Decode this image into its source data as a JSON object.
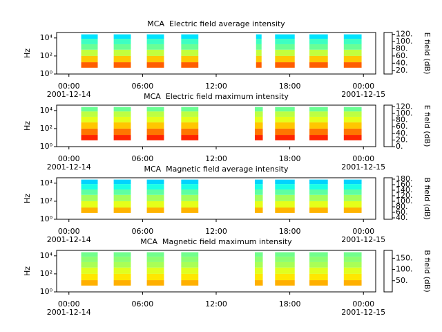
{
  "chart_data": [
    {
      "type": "spectrogram",
      "title": "MCA  Electric field average intensity",
      "ylabel": "Hz",
      "yscale": "log",
      "xlim": [
        -1,
        25
      ],
      "xticks": [
        {
          "value": 0,
          "label": "00:00",
          "date": "2001-12-14"
        },
        {
          "value": 6,
          "label": "06:00"
        },
        {
          "value": 12,
          "label": "12:00"
        },
        {
          "value": 18,
          "label": "18:00"
        },
        {
          "value": 24,
          "label": "00:00",
          "date": "2001-12-15"
        }
      ],
      "ylim": [
        1,
        40000
      ],
      "yticks": [
        {
          "value": 1,
          "label": "10⁰"
        },
        {
          "value": 100,
          "label": "10²"
        },
        {
          "value": 10000,
          "label": "10⁴"
        }
      ],
      "colorbar_label": "E field (dB)",
      "colormap": "jet",
      "clim": [
        10,
        125
      ],
      "cticks": [
        {
          "value": 20,
          "label": "20."
        },
        {
          "value": 40,
          "label": "40."
        },
        {
          "value": 60,
          "label": "60."
        },
        {
          "value": 80,
          "label": "80."
        },
        {
          "value": 100,
          "label": "100."
        },
        {
          "value": 120,
          "label": "120."
        }
      ],
      "freq_bins": [
        5,
        20,
        100,
        500,
        2000,
        8000,
        25000
      ],
      "values": [
        100,
        88,
        75,
        65,
        60,
        50
      ],
      "blocks": [
        [
          1.0,
          2.35
        ],
        [
          3.65,
          5.05
        ],
        [
          6.35,
          7.75
        ],
        [
          9.15,
          10.55
        ],
        [
          15.25,
          15.7
        ],
        [
          16.8,
          18.4
        ],
        [
          19.6,
          21.1
        ],
        [
          22.4,
          23.85
        ]
      ]
    },
    {
      "type": "spectrogram",
      "title": "MCA  Electric field maximum intensity",
      "ylabel": "Hz",
      "yscale": "log",
      "xlim": [
        -1,
        25
      ],
      "xticks": [
        {
          "value": 0,
          "label": "00:00",
          "date": "2001-12-14"
        },
        {
          "value": 6,
          "label": "06:00"
        },
        {
          "value": 12,
          "label": "12:00"
        },
        {
          "value": 18,
          "label": "18:00"
        },
        {
          "value": 24,
          "label": "00:00",
          "date": "2001-12-15"
        }
      ],
      "ylim": [
        1,
        40000
      ],
      "yticks": [
        {
          "value": 1,
          "label": "10⁰"
        },
        {
          "value": 100,
          "label": "10²"
        },
        {
          "value": 10000,
          "label": "10⁴"
        }
      ],
      "colorbar_label": "E field (dB)",
      "colormap": "jet",
      "clim": [
        0,
        125
      ],
      "cticks": [
        {
          "value": 0,
          "label": "0."
        },
        {
          "value": 20,
          "label": "20."
        },
        {
          "value": 40,
          "label": "40."
        },
        {
          "value": 60,
          "label": "60."
        },
        {
          "value": 80,
          "label": "80."
        },
        {
          "value": 100,
          "label": "100."
        },
        {
          "value": 120,
          "label": "120."
        }
      ],
      "freq_bins": [
        5,
        20,
        100,
        500,
        2000,
        8000,
        25000
      ],
      "values": [
        105,
        95,
        85,
        75,
        70,
        60
      ],
      "blocks": [
        [
          1.0,
          2.35
        ],
        [
          3.65,
          5.05
        ],
        [
          6.35,
          7.75
        ],
        [
          9.15,
          10.55
        ],
        [
          15.15,
          15.8
        ],
        [
          16.8,
          18.4
        ],
        [
          19.6,
          21.1
        ],
        [
          22.4,
          23.85
        ]
      ]
    },
    {
      "type": "spectrogram",
      "title": "MCA  Magnetic field average intensity",
      "ylabel": "Hz",
      "yscale": "log",
      "xlim": [
        -1,
        25
      ],
      "xticks": [
        {
          "value": 0,
          "label": "00:00",
          "date": "2001-12-14"
        },
        {
          "value": 6,
          "label": "06:00"
        },
        {
          "value": 12,
          "label": "12:00"
        },
        {
          "value": 18,
          "label": "18:00"
        },
        {
          "value": 24,
          "label": "00:00",
          "date": "2001-12-15"
        }
      ],
      "ylim": [
        1,
        40000
      ],
      "yticks": [
        {
          "value": 1,
          "label": "10⁰"
        },
        {
          "value": 100,
          "label": "10²"
        },
        {
          "value": 10000,
          "label": "10⁴"
        }
      ],
      "colorbar_label": "B field (dB)",
      "colormap": "jet",
      "clim": [
        35,
        185
      ],
      "cticks": [
        {
          "value": 40,
          "label": "40."
        },
        {
          "value": 60,
          "label": "60."
        },
        {
          "value": 80,
          "label": "80."
        },
        {
          "value": 100,
          "label": "100."
        },
        {
          "value": 120,
          "label": "120."
        },
        {
          "value": 140,
          "label": "140."
        },
        {
          "value": 160,
          "label": "160."
        },
        {
          "value": 180,
          "label": "180."
        }
      ],
      "freq_bins": [
        5,
        20,
        100,
        500,
        2000,
        8000,
        25000
      ],
      "values": [
        140,
        125,
        115,
        105,
        95,
        85
      ],
      "blocks": [
        [
          1.0,
          2.35
        ],
        [
          3.65,
          5.05
        ],
        [
          6.35,
          7.75
        ],
        [
          9.15,
          10.55
        ],
        [
          15.15,
          15.8
        ],
        [
          16.8,
          18.4
        ],
        [
          19.6,
          21.1
        ],
        [
          22.4,
          23.85
        ]
      ]
    },
    {
      "type": "spectrogram",
      "title": "MCA  Magnetic field maximum intensity",
      "ylabel": "Hz",
      "yscale": "log",
      "xlim": [
        -1,
        25
      ],
      "xticks": [
        {
          "value": 0,
          "label": "00:00",
          "date": "2001-12-14"
        },
        {
          "value": 6,
          "label": "06:00"
        },
        {
          "value": 12,
          "label": "12:00"
        },
        {
          "value": 18,
          "label": "18:00"
        },
        {
          "value": 24,
          "label": "00:00",
          "date": "2001-12-15"
        }
      ],
      "ylim": [
        1,
        40000
      ],
      "yticks": [
        {
          "value": 1,
          "label": "10⁰"
        },
        {
          "value": 100,
          "label": "10²"
        },
        {
          "value": 10000,
          "label": "10⁴"
        }
      ],
      "colorbar_label": "B field (dB)",
      "colormap": "jet",
      "clim": [
        0,
        185
      ],
      "cticks": [
        {
          "value": 50,
          "label": "50."
        },
        {
          "value": 100,
          "label": "100."
        },
        {
          "value": 150,
          "label": "150."
        }
      ],
      "freq_bins": [
        5,
        20,
        100,
        500,
        2000,
        8000,
        25000
      ],
      "values": [
        130,
        120,
        110,
        100,
        95,
        90
      ],
      "blocks": [
        [
          1.0,
          2.35
        ],
        [
          3.65,
          5.05
        ],
        [
          6.35,
          7.75
        ],
        [
          9.15,
          10.55
        ],
        [
          15.15,
          15.8
        ],
        [
          16.8,
          18.4
        ],
        [
          19.6,
          21.1
        ],
        [
          22.4,
          23.85
        ]
      ]
    }
  ]
}
